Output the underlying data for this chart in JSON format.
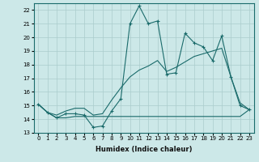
{
  "xlabel": "Humidex (Indice chaleur)",
  "background_color": "#cce8e8",
  "grid_color": "#aacccc",
  "line_color": "#1a6b6b",
  "xlim": [
    -0.5,
    23.5
  ],
  "ylim": [
    13,
    22.5
  ],
  "yticks": [
    13,
    14,
    15,
    16,
    17,
    18,
    19,
    20,
    21,
    22
  ],
  "xticks": [
    0,
    1,
    2,
    3,
    4,
    5,
    6,
    7,
    8,
    9,
    10,
    11,
    12,
    13,
    14,
    15,
    16,
    17,
    18,
    19,
    20,
    21,
    22,
    23
  ],
  "series1_x": [
    0,
    1,
    2,
    3,
    4,
    5,
    6,
    7,
    8,
    9,
    10,
    11,
    12,
    13,
    14,
    15,
    16,
    17,
    18,
    19,
    20,
    21,
    22,
    23
  ],
  "series1_y": [
    15.1,
    14.5,
    14.1,
    14.4,
    14.4,
    14.3,
    13.4,
    13.5,
    14.6,
    15.5,
    21.0,
    22.3,
    21.0,
    21.2,
    17.3,
    17.4,
    20.3,
    19.6,
    19.3,
    18.3,
    20.1,
    17.1,
    15.0,
    14.7
  ],
  "series2_x": [
    0,
    1,
    2,
    3,
    4,
    5,
    6,
    7,
    8,
    9,
    10,
    11,
    12,
    13,
    14,
    15,
    16,
    17,
    18,
    19,
    20,
    21,
    22,
    23
  ],
  "series2_y": [
    15.1,
    14.5,
    14.1,
    14.1,
    14.2,
    14.2,
    14.2,
    14.2,
    14.2,
    14.2,
    14.2,
    14.2,
    14.2,
    14.2,
    14.2,
    14.2,
    14.2,
    14.2,
    14.2,
    14.2,
    14.2,
    14.2,
    14.2,
    14.7
  ],
  "series3_x": [
    0,
    1,
    2,
    3,
    4,
    5,
    6,
    7,
    8,
    9,
    10,
    11,
    12,
    13,
    14,
    15,
    16,
    17,
    18,
    19,
    20,
    21,
    22,
    23
  ],
  "series3_y": [
    15.1,
    14.5,
    14.3,
    14.6,
    14.8,
    14.8,
    14.3,
    14.4,
    15.4,
    16.3,
    17.1,
    17.6,
    17.9,
    18.3,
    17.5,
    17.8,
    18.2,
    18.6,
    18.8,
    19.0,
    19.2,
    17.1,
    15.2,
    14.7
  ],
  "tick_fontsize": 5.0,
  "xlabel_fontsize": 6.0
}
